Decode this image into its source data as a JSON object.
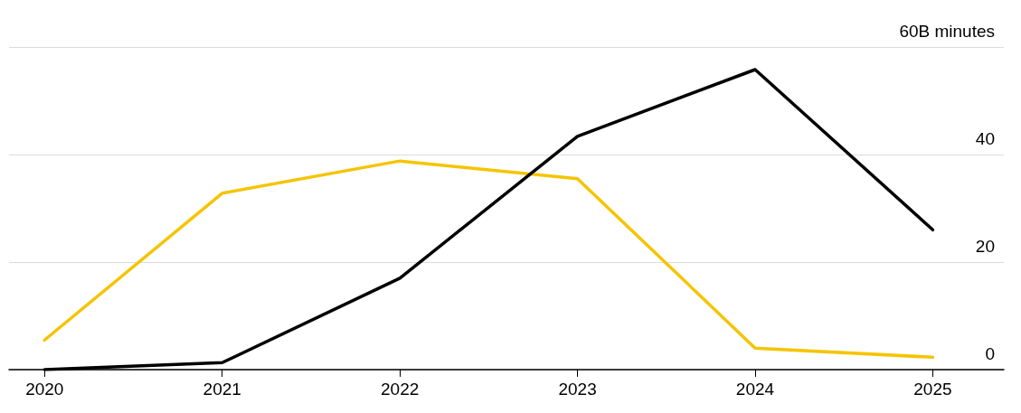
{
  "chart_data": {
    "type": "line",
    "x": [
      2020,
      2021,
      2022,
      2023,
      2024,
      2025
    ],
    "series": [
      {
        "color": "#f5c400",
        "values": [
          5.5,
          32.8,
          38.8,
          35.5,
          4,
          2.3
        ]
      },
      {
        "color": "#000000",
        "values": [
          0,
          1.3,
          17,
          43.4,
          55.8,
          26
        ]
      }
    ],
    "xlim": [
      2019.8,
      2025.4
    ],
    "xticks": [
      2020,
      2021,
      2022,
      2023,
      2024,
      2025
    ],
    "ylim": [
      0,
      60
    ],
    "yticks": [
      0,
      20,
      40,
      {
        "value": 60,
        "label": "60B minutes"
      }
    ],
    "grid": "y",
    "marker": "none",
    "line_style": "solid"
  }
}
